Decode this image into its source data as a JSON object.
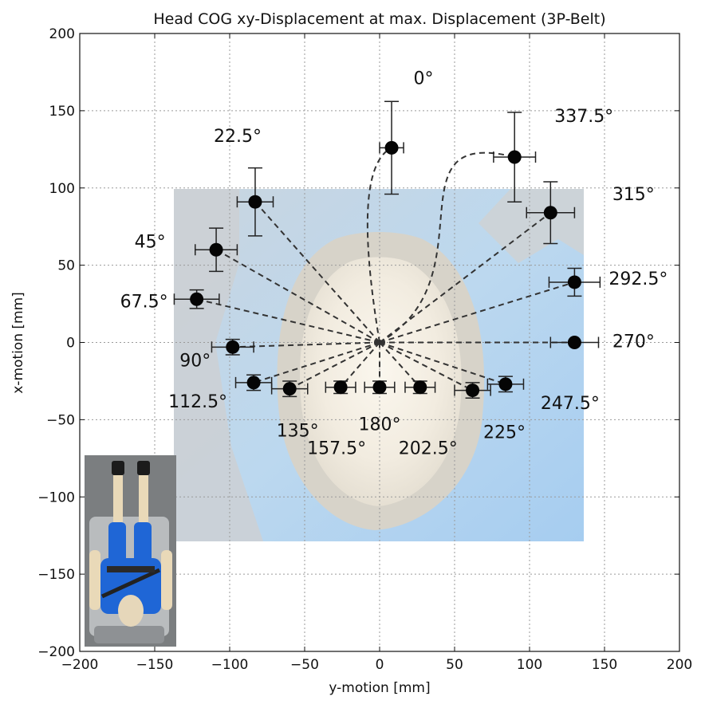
{
  "chart_data": {
    "type": "scatter",
    "title": "Head COG xy-Displacement at max. Displacement (3P-Belt)",
    "xlabel": "y-motion [mm]",
    "ylabel": "x-motion [mm]",
    "xlim": [
      -200,
      200
    ],
    "ylim": [
      -200,
      200
    ],
    "xticks": [
      -200,
      -150,
      -100,
      -50,
      0,
      50,
      100,
      150,
      200
    ],
    "yticks": [
      -200,
      -150,
      -100,
      -50,
      0,
      50,
      100,
      150,
      200
    ],
    "xtick_labels": [
      "−200",
      "−150",
      "−100",
      "−50",
      "0",
      "50",
      "100",
      "150",
      "200"
    ],
    "ytick_labels": [
      "−200",
      "−150",
      "−100",
      "−50",
      "0",
      "50",
      "100",
      "150",
      "200"
    ],
    "grid": true,
    "origin": [
      0,
      0
    ],
    "points": [
      {
        "label": "0°",
        "y": 8,
        "x": 126,
        "yerr": 8,
        "xerr": 30
      },
      {
        "label": "22.5°",
        "y": -83,
        "x": 91,
        "yerr": 12,
        "xerr": 22
      },
      {
        "label": "45°",
        "y": -109,
        "x": 60,
        "yerr": 14,
        "xerr": 14
      },
      {
        "label": "67.5°",
        "y": -122,
        "x": 28,
        "yerr": 15,
        "xerr": 6
      },
      {
        "label": "90°",
        "y": -98,
        "x": -3,
        "yerr": 14,
        "xerr": 5
      },
      {
        "label": "112.5°",
        "y": -84,
        "x": -26,
        "yerr": 12,
        "xerr": 5
      },
      {
        "label": "135°",
        "y": -60,
        "x": -30,
        "yerr": 12,
        "xerr": 5
      },
      {
        "label": "157.5°",
        "y": -26,
        "x": -29,
        "yerr": 10,
        "xerr": 4
      },
      {
        "label": "180°",
        "y": 0,
        "x": -29,
        "yerr": 10,
        "xerr": 4
      },
      {
        "label": "202.5°",
        "y": 27,
        "x": -29,
        "yerr": 10,
        "xerr": 4
      },
      {
        "label": "225°",
        "y": 62,
        "x": -31,
        "yerr": 12,
        "xerr": 5
      },
      {
        "label": "247.5°",
        "y": 84,
        "x": -27,
        "yerr": 12,
        "xerr": 5
      },
      {
        "label": "270°",
        "y": 130,
        "x": 0,
        "yerr": 16,
        "xerr": 0
      },
      {
        "label": "292.5°",
        "y": 130,
        "x": 39,
        "yerr": 17,
        "xerr": 9
      },
      {
        "label": "315°",
        "y": 114,
        "x": 84,
        "yerr": 16,
        "xerr": 20
      },
      {
        "label": "337.5°",
        "y": 90,
        "x": 120,
        "yerr": 14,
        "xerr": 29
      }
    ]
  }
}
